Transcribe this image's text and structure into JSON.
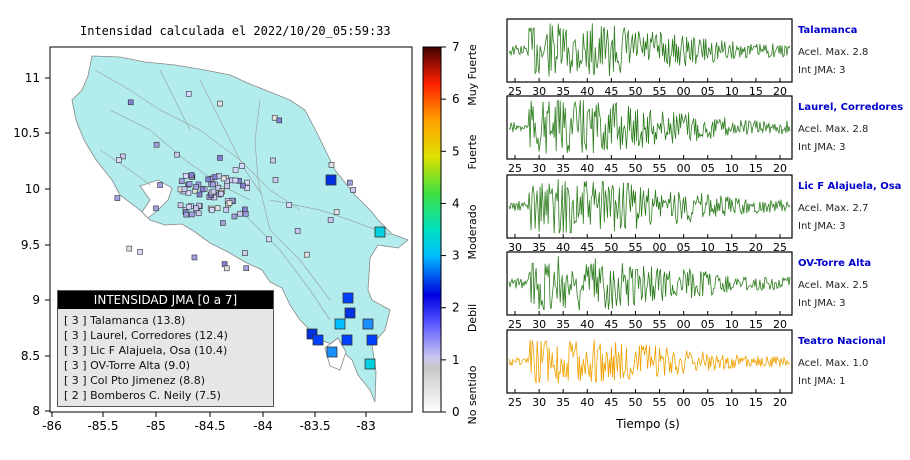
{
  "map": {
    "title": "Intensidad calculada el 2022/10/20_05:59:33",
    "x_ticks": [
      "-86",
      "-85.5",
      "-85",
      "-84.5",
      "-84",
      "-83.5",
      "-83"
    ],
    "y_ticks": [
      "11",
      "10.5",
      "10",
      "9.5",
      "9",
      "8.5",
      "8"
    ],
    "colors": {
      "land": "#b3ecec",
      "sea": "#ffffff",
      "border": "#aaaaaa"
    }
  },
  "colorbar": {
    "ticks": [
      "0",
      "1",
      "2",
      "3",
      "4",
      "5",
      "6",
      "7"
    ],
    "labels": [
      "No sentido",
      "Debil",
      "Moderado",
      "Fuerte",
      "Muy Fuerte"
    ]
  },
  "legend": {
    "title": "INTENSIDAD JMA [0 a 7]",
    "items": [
      "[ 3 ]  Talamanca (13.8)",
      "[ 3 ]  Laurel, Corredores (12.4)",
      "[ 3 ]  Lic F Alajuela, Osa (10.4)",
      "[ 3 ]  OV-Torre Alta (9.0)",
      "[ 3 ]  Col Pto Jimenez (8.8)",
      "[ 2 ]  Bomberos C. Neily (7.5)"
    ]
  },
  "stations": [
    {
      "name": "Talamanca",
      "accel_label": "Acel. Max. 2.8",
      "int_label": "Int JMA: 3",
      "ticks": [
        "25",
        "30",
        "35",
        "40",
        "45",
        "50",
        "55",
        "00",
        "05",
        "10",
        "15",
        "20"
      ],
      "color": "#2e7d1f"
    },
    {
      "name": "Laurel, Corredores",
      "accel_label": "Acel. Max. 2.8",
      "int_label": "Int JMA: 3",
      "ticks": [
        "25",
        "30",
        "35",
        "40",
        "45",
        "50",
        "55",
        "00",
        "05",
        "10",
        "15",
        "20"
      ],
      "color": "#2e7d1f"
    },
    {
      "name": "Lic F Alajuela, Osa",
      "accel_label": "Acel. Max. 2.7",
      "int_label": "Int JMA: 3",
      "ticks": [
        "30",
        "35",
        "40",
        "45",
        "50",
        "55",
        "00",
        "05",
        "10",
        "15",
        "20",
        "25"
      ],
      "color": "#2e7d1f"
    },
    {
      "name": "OV-Torre Alta",
      "accel_label": "Acel. Max. 2.5",
      "int_label": "Int JMA: 3",
      "ticks": [
        "25",
        "30",
        "35",
        "40",
        "45",
        "50",
        "55",
        "00",
        "05",
        "10",
        "15",
        "20"
      ],
      "color": "#2e7d1f"
    },
    {
      "name": "Teatro Nacional",
      "accel_label": "Acel. Max. 1.0",
      "int_label": "Int JMA: 1",
      "ticks": [
        "25",
        "30",
        "35",
        "40",
        "45",
        "50",
        "55",
        "00",
        "05",
        "10",
        "15",
        "20"
      ],
      "color": "#f0a000"
    }
  ],
  "xlabel": "Tiempo (s)",
  "label_color": "#0000cc"
}
